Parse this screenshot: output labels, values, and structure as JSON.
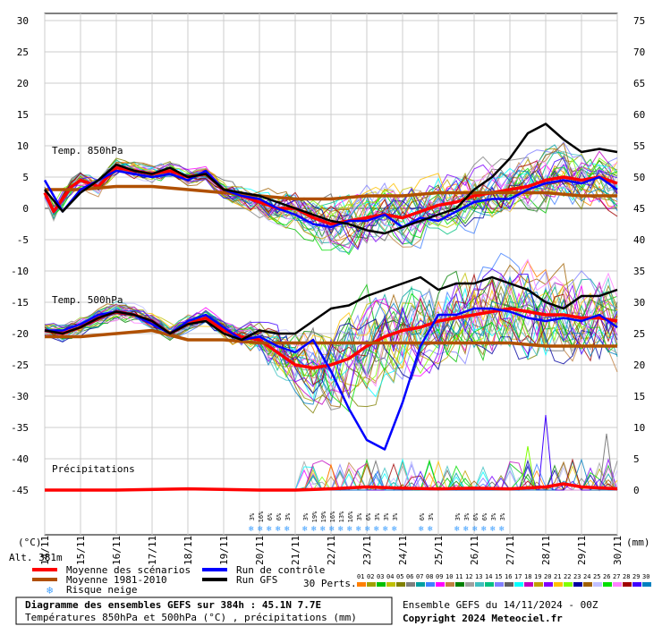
{
  "chart_data": {
    "type": "line",
    "left_axis": {
      "label": "(°C)",
      "ticks": [
        30,
        25,
        20,
        15,
        10,
        5,
        0,
        -5,
        -10,
        -15,
        -20,
        -25,
        -30,
        -35,
        -40,
        -45
      ],
      "range": [
        -45,
        30
      ]
    },
    "right_axis": {
      "label": "(mm)",
      "ticks": [
        75,
        70,
        65,
        60,
        55,
        50,
        45,
        40,
        35,
        30,
        25,
        20,
        15,
        10,
        5,
        0
      ],
      "range": [
        0,
        75
      ]
    },
    "x_ticks": [
      "14/11",
      "15/11",
      "16/11",
      "17/11",
      "18/11",
      "19/11",
      "20/11",
      "21/11",
      "22/11",
      "23/11",
      "24/11",
      "25/11",
      "26/11",
      "27/11",
      "28/11",
      "29/11",
      "30/11"
    ],
    "altitude_label": "Alt. 381m",
    "panel_labels": {
      "t850": "Temp. 850hPa",
      "t500": "Temp. 500hPa",
      "precip": "Précipitations"
    },
    "series": [
      {
        "name": "Moyenne des scénarios",
        "color": "#ff0000",
        "panel": "t850",
        "x": [
          0,
          0.25,
          0.5,
          0.75,
          1,
          1.5,
          2,
          2.5,
          3,
          3.5,
          4,
          4.5,
          5,
          5.5,
          6,
          6.5,
          7,
          7.5,
          8,
          8.5,
          9,
          9.5,
          10,
          10.5,
          11,
          11.5,
          12,
          12.5,
          13,
          13.5,
          14,
          14.5,
          15,
          15.5,
          16
        ],
        "y": [
          2.5,
          -0.5,
          1.5,
          3.5,
          4.5,
          3.5,
          6.5,
          6,
          5.5,
          6,
          5,
          5.5,
          3,
          2,
          1,
          0,
          0,
          -1.5,
          -2.5,
          -2,
          -1.5,
          -1,
          -1.5,
          -0.5,
          0.5,
          1,
          2,
          2.5,
          3,
          3.5,
          4.5,
          5,
          4.5,
          5,
          4
        ]
      },
      {
        "name": "Moyenne 1981-2010",
        "color": "#b05000",
        "panel": "t850",
        "x": [
          0,
          1,
          2,
          3,
          4,
          5,
          6,
          7,
          8,
          9,
          10,
          11,
          12,
          13,
          14,
          15,
          16
        ],
        "y": [
          3,
          3,
          3.5,
          3.5,
          3,
          2.5,
          2,
          1.5,
          1.5,
          2,
          2,
          2.5,
          2.5,
          2.5,
          2.5,
          2,
          2
        ]
      },
      {
        "name": "Run de contrôle",
        "color": "#0000ff",
        "panel": "t850",
        "x": [
          0,
          0.5,
          1,
          1.5,
          2,
          2.5,
          3,
          3.5,
          4,
          4.5,
          5,
          5.5,
          6,
          6.5,
          7,
          7.5,
          8,
          8.5,
          9,
          9.5,
          10,
          10.5,
          11,
          11.5,
          12,
          12.5,
          13,
          13.5,
          14,
          14.5,
          15,
          15.5,
          16
        ],
        "y": [
          4.5,
          -0.5,
          3,
          4.5,
          6,
          5.5,
          5,
          5.5,
          4.5,
          6,
          3,
          2,
          1.5,
          0,
          -1,
          -2.5,
          -3,
          -2,
          -2,
          -1,
          -3,
          -1.5,
          -2,
          -0.5,
          1,
          1.5,
          1.5,
          3,
          4,
          4.5,
          4,
          5,
          3
        ]
      },
      {
        "name": "Run GFS",
        "color": "#000000",
        "panel": "t850",
        "x": [
          0,
          0.5,
          1,
          1.5,
          2,
          2.5,
          3,
          3.5,
          4,
          4.5,
          5,
          5.5,
          6,
          6.5,
          7,
          7.5,
          8,
          8.5,
          9,
          9.5,
          10,
          10.5,
          11,
          11.5,
          12,
          12.5,
          13,
          13.5,
          14,
          14.5,
          15,
          15.5,
          16
        ],
        "y": [
          3,
          -0.5,
          2.5,
          4.5,
          7,
          6,
          5.5,
          6.5,
          5,
          5.5,
          3,
          2.5,
          2,
          1,
          0,
          -1,
          -2,
          -2.5,
          -3.5,
          -4,
          -3,
          -2,
          -1,
          0,
          3,
          5,
          8,
          12,
          13.5,
          11,
          9,
          9.5,
          9
        ]
      },
      {
        "name": "Moyenne des scénarios",
        "color": "#ff0000",
        "panel": "t500",
        "x": [
          0,
          0.5,
          1,
          1.5,
          2,
          2.5,
          3,
          3.5,
          4,
          4.5,
          5,
          5.5,
          6,
          6.5,
          7,
          7.5,
          8,
          8.5,
          9,
          9.5,
          10,
          10.5,
          11,
          11.5,
          12,
          12.5,
          13,
          13.5,
          14,
          14.5,
          15,
          15.5,
          16
        ],
        "y": [
          -19.5,
          -20,
          -19,
          -17.5,
          -16.5,
          -17,
          -18,
          -20,
          -18.5,
          -17.5,
          -19.5,
          -20.5,
          -21,
          -23,
          -25,
          -25.5,
          -25,
          -24,
          -22,
          -20.5,
          -19.5,
          -19,
          -18,
          -17.5,
          -17,
          -16.5,
          -16,
          -16.5,
          -17,
          -17,
          -17.5,
          -17.5,
          -18
        ]
      },
      {
        "name": "Moyenne 1981-2010",
        "color": "#b05000",
        "panel": "t500",
        "x": [
          0,
          1,
          2,
          3,
          4,
          5,
          6,
          7,
          8,
          9,
          10,
          11,
          12,
          13,
          14,
          15,
          16
        ],
        "y": [
          -20.5,
          -20.5,
          -20,
          -19.5,
          -21,
          -21,
          -21.5,
          -21.5,
          -21.5,
          -21.5,
          -21.5,
          -21.5,
          -21.5,
          -21.5,
          -22,
          -22,
          -22
        ]
      },
      {
        "name": "Run de contrôle",
        "color": "#0000ff",
        "panel": "t500",
        "x": [
          0,
          0.5,
          1,
          1.5,
          2,
          2.5,
          3,
          3.5,
          4,
          4.5,
          5,
          5.5,
          6,
          6.5,
          7,
          7.5,
          8,
          8.5,
          9,
          9.5,
          10,
          10.5,
          11,
          11.5,
          12,
          12.5,
          13,
          13.5,
          14,
          14.5,
          15,
          15.5,
          16
        ],
        "y": [
          -19.5,
          -19.5,
          -18.5,
          -17,
          -16.5,
          -17,
          -18.5,
          -20,
          -18,
          -17,
          -19,
          -21,
          -20.5,
          -22,
          -23,
          -21,
          -26,
          -32,
          -37,
          -38.5,
          -31,
          -22,
          -17,
          -17,
          -16,
          -16,
          -16.5,
          -17.5,
          -18,
          -17.5,
          -18,
          -17,
          -19
        ]
      },
      {
        "name": "Run GFS",
        "color": "#000000",
        "panel": "t500",
        "x": [
          0,
          0.5,
          1,
          1.5,
          2,
          2.5,
          3,
          3.5,
          4,
          4.5,
          5,
          5.5,
          6,
          6.5,
          7,
          7.5,
          8,
          8.5,
          9,
          9.5,
          10,
          10.5,
          11,
          11.5,
          12,
          12.5,
          13,
          13.5,
          14,
          14.5,
          15,
          15.5,
          16
        ],
        "y": [
          -19.5,
          -20,
          -19,
          -17.5,
          -16.5,
          -17,
          -18,
          -20,
          -18.5,
          -18,
          -20,
          -21,
          -19.5,
          -20,
          -20,
          -18,
          -16,
          -15.5,
          -14,
          -13,
          -12,
          -11,
          -13,
          -12,
          -12,
          -11,
          -12,
          -13,
          -15,
          -16,
          -14,
          -14,
          -13
        ]
      },
      {
        "name": "Moyenne des scénarios",
        "color": "#ff0000",
        "panel": "precip",
        "x": [
          0,
          2,
          4,
          6,
          7,
          8,
          9,
          10,
          11,
          12,
          13,
          14,
          14.5,
          15,
          16
        ],
        "y": [
          0,
          0,
          0.2,
          0,
          0,
          0.2,
          0.5,
          0.3,
          0.2,
          0.3,
          0.2,
          0.5,
          1,
          0.5,
          0.2
        ]
      }
    ],
    "precip_members_peaks": [
      {
        "x": 8,
        "y": 4
      },
      {
        "x": 9.3,
        "y": 3
      },
      {
        "x": 10.5,
        "y": 2
      },
      {
        "x": 13.5,
        "y": 7
      },
      {
        "x": 14,
        "y": 12
      },
      {
        "x": 15.7,
        "y": 9
      }
    ],
    "snow_risk": [
      {
        "x": 5.8,
        "pct": "3%"
      },
      {
        "x": 6.05,
        "pct": "16%"
      },
      {
        "x": 6.3,
        "pct": "6%"
      },
      {
        "x": 6.55,
        "pct": "6%"
      },
      {
        "x": 6.8,
        "pct": "3%"
      },
      {
        "x": 7.3,
        "pct": "3%"
      },
      {
        "x": 7.55,
        "pct": "19%"
      },
      {
        "x": 7.8,
        "pct": "19%"
      },
      {
        "x": 8.05,
        "pct": "16%"
      },
      {
        "x": 8.3,
        "pct": "13%"
      },
      {
        "x": 8.55,
        "pct": "16%"
      },
      {
        "x": 8.8,
        "pct": "3%"
      },
      {
        "x": 9.05,
        "pct": "6%"
      },
      {
        "x": 9.3,
        "pct": "3%"
      },
      {
        "x": 9.55,
        "pct": "3%"
      },
      {
        "x": 9.8,
        "pct": "3%"
      },
      {
        "x": 10.55,
        "pct": "6%"
      },
      {
        "x": 10.8,
        "pct": "3%"
      },
      {
        "x": 11.55,
        "pct": "3%"
      },
      {
        "x": 11.8,
        "pct": "3%"
      },
      {
        "x": 12.05,
        "pct": "6%"
      },
      {
        "x": 12.3,
        "pct": "6%"
      },
      {
        "x": 12.55,
        "pct": "3%"
      },
      {
        "x": 12.8,
        "pct": "3%"
      }
    ]
  },
  "legend": {
    "items": [
      {
        "label": "Moyenne des scénarios",
        "color": "#ff0000"
      },
      {
        "label": "Moyenne 1981-2010",
        "color": "#b05000"
      },
      {
        "label": "Risque neige",
        "color": "#40a0ff"
      },
      {
        "label": "Run de contrôle",
        "color": "#0000ff"
      },
      {
        "label": "Run GFS",
        "color": "#000000"
      }
    ],
    "perts_label": "30 Perts.",
    "perts": [
      "01",
      "02",
      "03",
      "04",
      "05",
      "06",
      "07",
      "08",
      "09",
      "10",
      "11",
      "12",
      "13",
      "14",
      "15",
      "16",
      "17",
      "18",
      "19",
      "20",
      "21",
      "22",
      "23",
      "24",
      "25",
      "26",
      "27",
      "28",
      "29",
      "30"
    ],
    "pert_colors": [
      "#ff7f00",
      "#a0a000",
      "#00c000",
      "#c0c000",
      "#808000",
      "#7f7f7f",
      "#00a0a0",
      "#4080ff",
      "#ff00ff",
      "#c08040",
      "#008000",
      "#a0a0a0",
      "#40c0c0",
      "#00c080",
      "#8080ff",
      "#606060",
      "#00ffff",
      "#c000c0",
      "#c0a000",
      "#8000ff",
      "#ffc000",
      "#80ff00",
      "#0000a0",
      "#a06000",
      "#c0c0ff",
      "#00e000",
      "#ff80ff",
      "#a00000",
      "#4000ff",
      "#0080c0"
    ]
  },
  "footer": {
    "title": "Diagramme des ensembles GEFS sur 384h : 45.1N 7.7E",
    "subtitle": "Températures 850hPa et 500hPa (°C) , précipitations (mm)",
    "run": "Ensemble GEFS du 14/11/2024 - 00Z",
    "copyright": "Copyright 2024 Meteociel.fr"
  }
}
